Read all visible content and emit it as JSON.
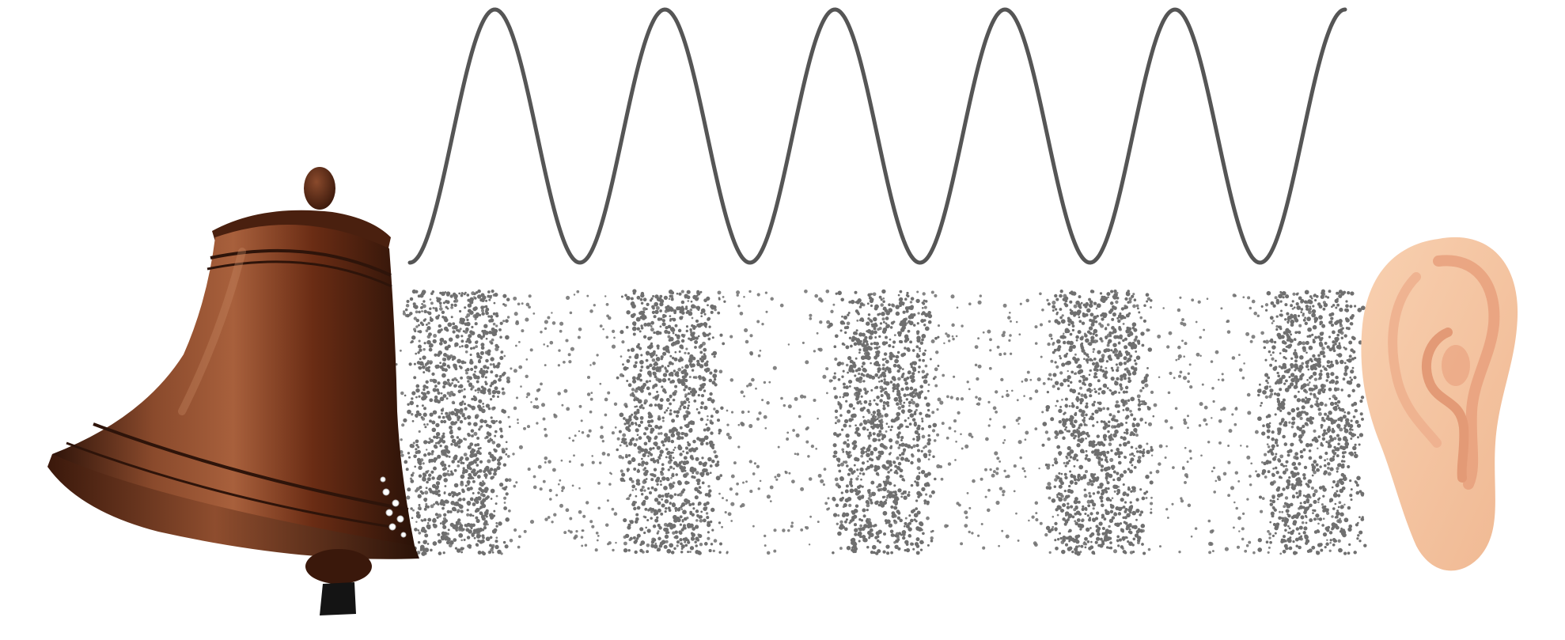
{
  "scene": {
    "colors": {
      "background": "#ffffff",
      "wave": "#555555",
      "particles": "#6f6f6f",
      "bell_dark": "#3b1a0c",
      "bell_mid": "#6a3018",
      "bell_light": "#9a5a3a",
      "bell_band": "#2e140a",
      "clapper": "#141414",
      "ear_skin": "#f6c9a6",
      "ear_inner": "#e8a07c"
    },
    "wave": {
      "cycles": 5,
      "description_icon": "sine-wave"
    },
    "compression_zones": {
      "count": 5
    },
    "icons": {
      "bell": "bell-icon",
      "ear": "ear-icon"
    }
  }
}
